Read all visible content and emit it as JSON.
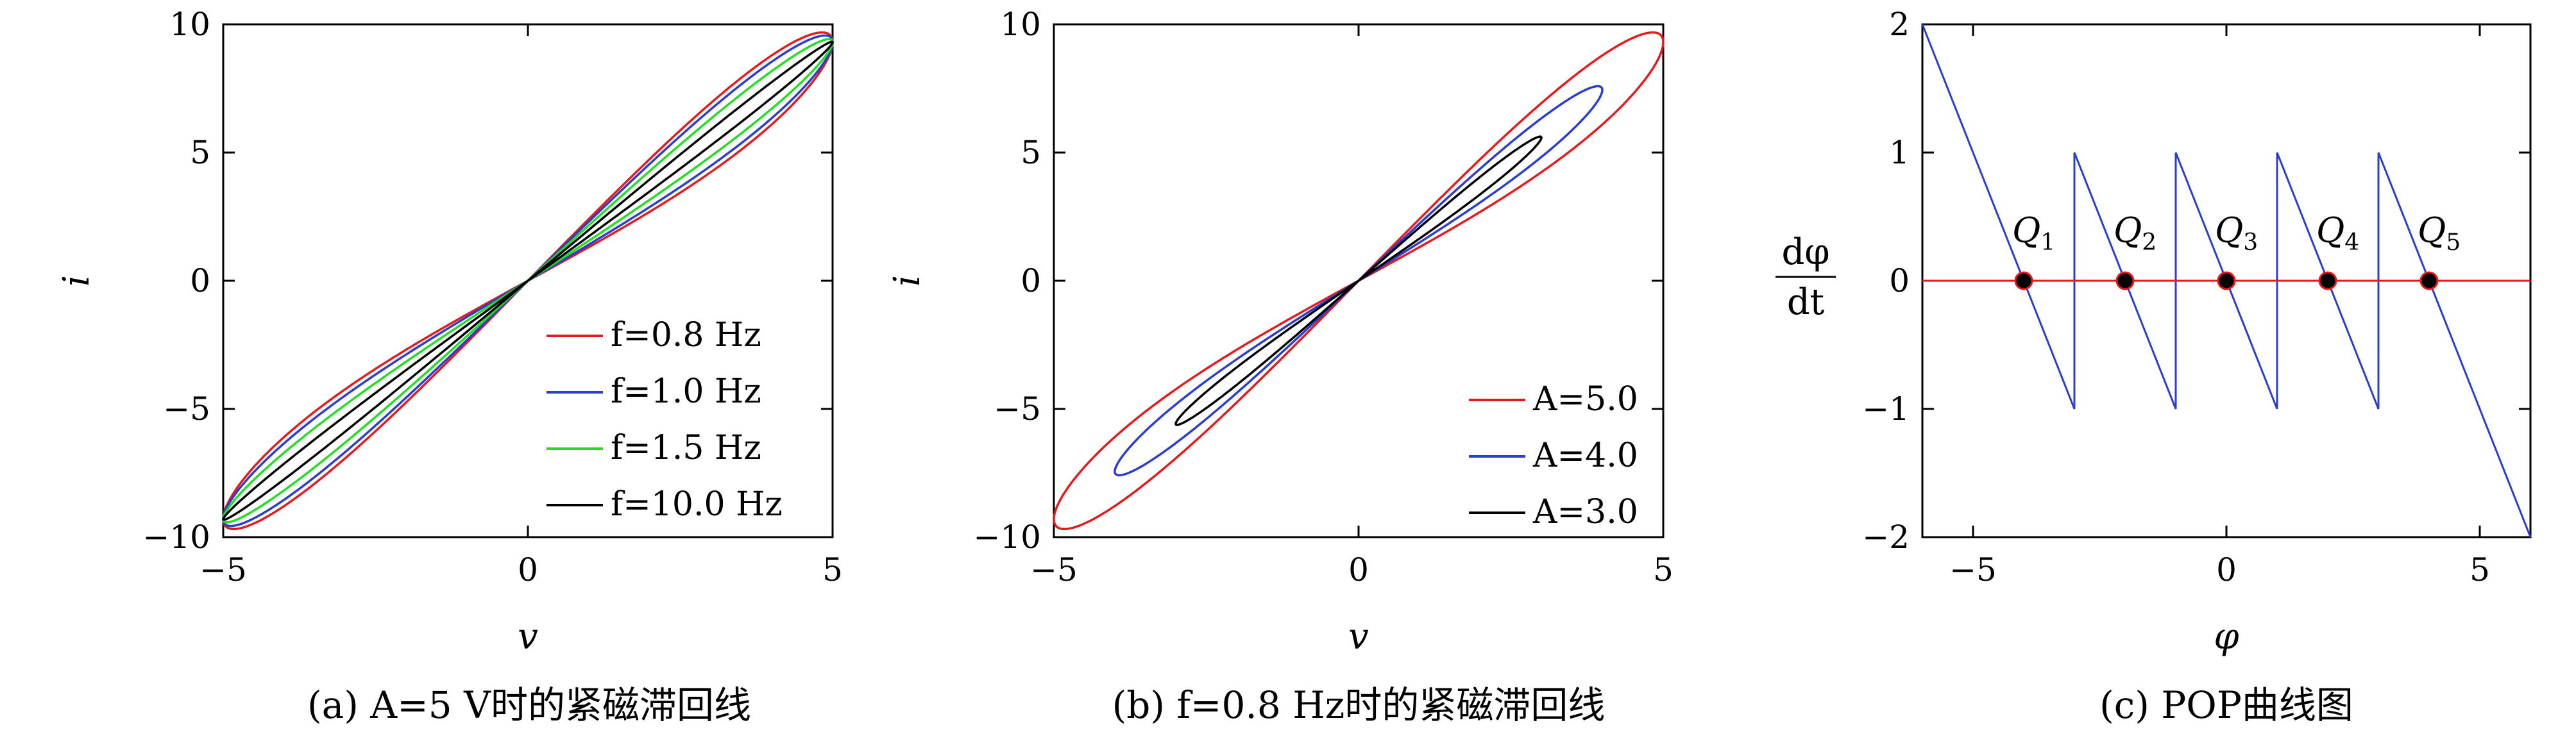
{
  "chart_data": [
    {
      "id": "a",
      "type": "line",
      "caption": "(a) A=5 V时的紧磁滞回线",
      "xlabel": "v",
      "ylabel": "i",
      "xlim": [
        -5,
        5
      ],
      "ylim": [
        -10,
        10
      ],
      "xticks": [
        "-5",
        "0",
        "5"
      ],
      "yticks": [
        "-10",
        "-5",
        "0",
        "5",
        "10"
      ],
      "legend_position": "bottom-right",
      "series": [
        {
          "name": "f=0.8 Hz",
          "color": "#e41a1c",
          "amplitude": 5,
          "loop": 0.11
        },
        {
          "name": "f=1.0 Hz",
          "color": "#2b3dcc",
          "amplitude": 5,
          "loop": 0.09
        },
        {
          "name": "f=1.5 Hz",
          "color": "#22dd22",
          "amplitude": 5,
          "loop": 0.06
        },
        {
          "name": "f=10.0 Hz",
          "color": "#000000",
          "amplitude": 5,
          "loop": 0.025
        }
      ]
    },
    {
      "id": "b",
      "type": "line",
      "caption": "(b) f=0.8 Hz时的紧磁滞回线",
      "xlabel": "v",
      "ylabel": "i",
      "xlim": [
        -5,
        5
      ],
      "ylim": [
        -10,
        10
      ],
      "xticks": [
        "-5",
        "0",
        "5"
      ],
      "yticks": [
        "-10",
        "-5",
        "0",
        "5",
        "10"
      ],
      "legend_position": "bottom-right",
      "series": [
        {
          "name": "A=5.0",
          "color": "#e41a1c",
          "amplitude": 5,
          "loop": 0.11
        },
        {
          "name": "A=4.0",
          "color": "#2b3dcc",
          "amplitude": 4,
          "loop": 0.09
        },
        {
          "name": "A=3.0",
          "color": "#000000",
          "amplitude": 3,
          "loop": 0.07
        }
      ]
    },
    {
      "id": "c",
      "type": "line",
      "caption": "(c) POP曲线图",
      "xlabel": "φ",
      "ylabel_num": "dφ",
      "ylabel_den": "dt",
      "xlim": [
        -6,
        6
      ],
      "ylim": [
        -2,
        2
      ],
      "xticks": [
        "-5",
        "0",
        "5"
      ],
      "yticks": [
        "-2",
        "-1",
        "0",
        "1",
        "2"
      ],
      "series": [
        {
          "color": "#2b3dcc",
          "x": [
            -6,
            -3,
            -3,
            -1,
            -1,
            1,
            1,
            3,
            3,
            6
          ],
          "y": [
            2,
            -1,
            1,
            -1,
            1,
            -1,
            1,
            -1,
            1,
            -2
          ]
        },
        {
          "color": "#e41a1c",
          "x": [
            -6,
            6
          ],
          "y": [
            0,
            0
          ]
        }
      ],
      "points": [
        {
          "label": "Q",
          "sub": "1",
          "x": -4,
          "y": 0
        },
        {
          "label": "Q",
          "sub": "2",
          "x": -2,
          "y": 0
        },
        {
          "label": "Q",
          "sub": "3",
          "x": 0,
          "y": 0
        },
        {
          "label": "Q",
          "sub": "4",
          "x": 2,
          "y": 0
        },
        {
          "label": "Q",
          "sub": "5",
          "x": 4,
          "y": 0
        }
      ]
    }
  ]
}
